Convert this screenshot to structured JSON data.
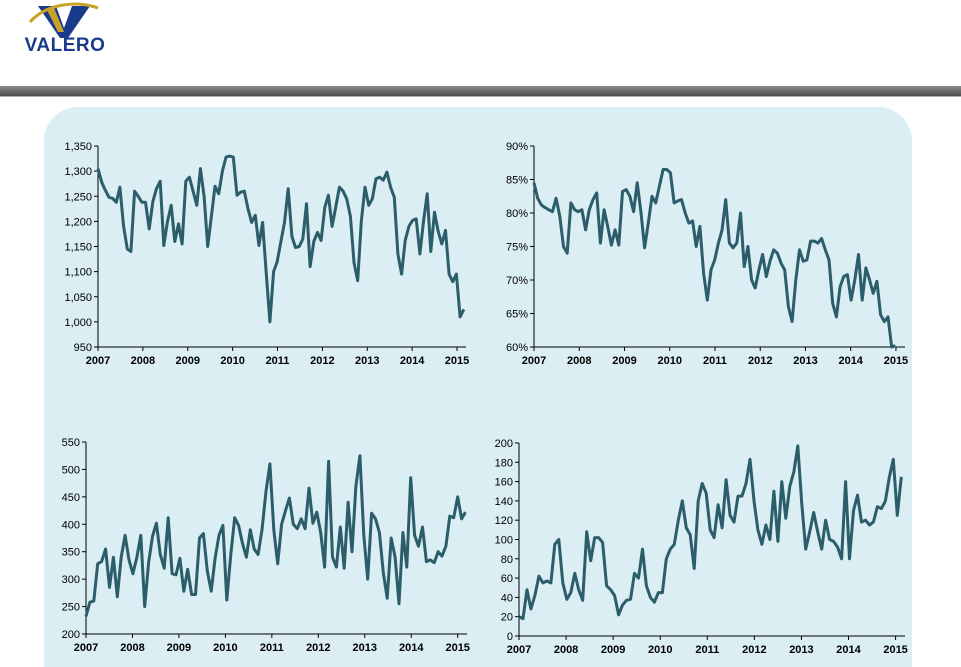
{
  "header": {
    "logo_text": "VALERO",
    "colors": {
      "logo_blue": "#1a3b8c",
      "logo_gold": "#c9a227",
      "bar": "#5a5a5a",
      "panel": "#daeef3",
      "line": "#2c5d6b"
    }
  },
  "chart_data": [
    {
      "type": "line",
      "xlim": [
        2007,
        2015.2
      ],
      "ylim": [
        950,
        1350
      ],
      "xticks": [
        "2007",
        "2008",
        "2009",
        "2010",
        "2011",
        "2012",
        "2013",
        "2014",
        "2015"
      ],
      "yticks": [
        "950",
        "1,000",
        "1,050",
        "1,100",
        "1,150",
        "1,200",
        "1,250",
        "1,300",
        "1,350"
      ],
      "series": [
        {
          "values": [
            1305,
            1278,
            1262,
            1248,
            1246,
            1238,
            1268,
            1190,
            1145,
            1140,
            1260,
            1250,
            1238,
            1238,
            1185,
            1240,
            1265,
            1280,
            1152,
            1200,
            1232,
            1160,
            1195,
            1155,
            1280,
            1288,
            1260,
            1232,
            1305,
            1250,
            1150,
            1210,
            1270,
            1255,
            1300,
            1328,
            1330,
            1328,
            1252,
            1258,
            1260,
            1225,
            1198,
            1212,
            1152,
            1198,
            1098,
            1000,
            1100,
            1120,
            1160,
            1198,
            1265,
            1170,
            1148,
            1150,
            1165,
            1235,
            1110,
            1160,
            1178,
            1162,
            1228,
            1252,
            1190,
            1228,
            1268,
            1260,
            1245,
            1210,
            1118,
            1082,
            1200,
            1268,
            1232,
            1245,
            1285,
            1288,
            1282,
            1298,
            1268,
            1248,
            1135,
            1095,
            1162,
            1190,
            1202,
            1205,
            1135,
            1200,
            1255,
            1140,
            1218,
            1180,
            1155,
            1182,
            1095,
            1080,
            1095,
            1010,
            1025
          ]
        }
      ],
      "x_start": 2007.0,
      "x_step": 0.0815
    },
    {
      "type": "line",
      "xlim": [
        2007,
        2015.2
      ],
      "ylim": [
        60,
        90
      ],
      "xticks": [
        "2007",
        "2008",
        "2009",
        "2010",
        "2011",
        "2012",
        "2013",
        "2014",
        "2015"
      ],
      "yticks": [
        "60%",
        "65%",
        "70%",
        "75%",
        "80%",
        "85%",
        "90%"
      ],
      "series": [
        {
          "values": [
            84.5,
            82.2,
            81.2,
            80.8,
            80.5,
            80.2,
            82.2,
            79.5,
            75,
            74,
            81.5,
            80.5,
            80.2,
            80.5,
            77.5,
            80.5,
            82,
            83,
            75.5,
            80.5,
            78,
            75.2,
            77.5,
            75.2,
            83.2,
            83.5,
            82.5,
            80.2,
            84.5,
            80.2,
            74.8,
            78.5,
            82.5,
            81.5,
            84,
            86.5,
            86.5,
            86,
            81.5,
            81.8,
            82,
            80,
            78.5,
            78.8,
            75,
            78,
            71,
            67,
            71.5,
            73,
            75.5,
            77.5,
            82,
            75.5,
            74.8,
            75.5,
            80,
            72,
            75,
            70,
            68.8,
            71.5,
            73.8,
            70.5,
            72.8,
            74.5,
            74,
            72.5,
            71.5,
            66,
            63.8,
            70,
            74.5,
            72.8,
            73,
            75.8,
            75.8,
            75.5,
            76.2,
            74.5,
            73,
            66.5,
            64.5,
            69,
            70.5,
            70.8,
            67,
            70,
            73.8,
            67,
            71.8,
            70,
            68,
            69.8,
            64.8,
            63.8,
            64.5,
            59.5,
            60.2
          ]
        }
      ],
      "x_start": 2007.0,
      "x_step": 0.0815
    },
    {
      "type": "line",
      "xlim": [
        2007,
        2015.2
      ],
      "ylim": [
        200,
        550
      ],
      "xticks": [
        "2007",
        "2008",
        "2009",
        "2010",
        "2011",
        "2012",
        "2013",
        "2014",
        "2015"
      ],
      "yticks": [
        "200",
        "250",
        "300",
        "350",
        "400",
        "450",
        "500",
        "550"
      ],
      "series": [
        {
          "values": [
            232,
            258,
            260,
            328,
            332,
            355,
            285,
            340,
            268,
            340,
            380,
            335,
            310,
            340,
            380,
            250,
            330,
            378,
            402,
            345,
            320,
            412,
            310,
            308,
            338,
            278,
            318,
            272,
            272,
            375,
            383,
            315,
            278,
            338,
            380,
            398,
            262,
            345,
            412,
            398,
            365,
            340,
            390,
            355,
            345,
            390,
            460,
            510,
            390,
            328,
            400,
            425,
            448,
            400,
            392,
            410,
            392,
            466,
            402,
            422,
            385,
            322,
            515,
            340,
            322,
            395,
            320,
            440,
            350,
            470,
            525,
            380,
            300,
            420,
            410,
            385,
            312,
            265,
            375,
            340,
            255,
            385,
            322,
            485,
            380,
            360,
            395,
            332,
            335,
            330,
            350,
            342,
            360,
            415,
            412,
            450,
            410,
            422
          ]
        }
      ],
      "x_start": 2007.0,
      "x_step": 0.0842
    },
    {
      "type": "line",
      "xlim": [
        2007,
        2015.2
      ],
      "ylim": [
        0,
        200
      ],
      "xticks": [
        "2007",
        "2008",
        "2009",
        "2010",
        "2011",
        "2012",
        "2013",
        "2014",
        "2015"
      ],
      "yticks": [
        "0",
        "20",
        "40",
        "60",
        "80",
        "100",
        "120",
        "140",
        "160",
        "180",
        "200"
      ],
      "series": [
        {
          "values": [
            20,
            18,
            48,
            28,
            42,
            62,
            55,
            57,
            55,
            95,
            100,
            55,
            38,
            45,
            65,
            48,
            37,
            108,
            78,
            102,
            102,
            97,
            52,
            48,
            42,
            22,
            32,
            37,
            38,
            65,
            60,
            90,
            52,
            40,
            35,
            45,
            45,
            80,
            90,
            95,
            120,
            140,
            112,
            105,
            70,
            140,
            158,
            148,
            110,
            102,
            136,
            112,
            162,
            125,
            118,
            145,
            145,
            158,
            183,
            140,
            110,
            95,
            115,
            100,
            150,
            98,
            160,
            122,
            155,
            170,
            197,
            138,
            90,
            108,
            128,
            108,
            90,
            120,
            100,
            98,
            92,
            80,
            160,
            80,
            130,
            146,
            118,
            120,
            115,
            118,
            134,
            132,
            140,
            165,
            183,
            125,
            165
          ]
        }
      ],
      "x_start": 2007.0,
      "x_step": 0.0846
    }
  ]
}
